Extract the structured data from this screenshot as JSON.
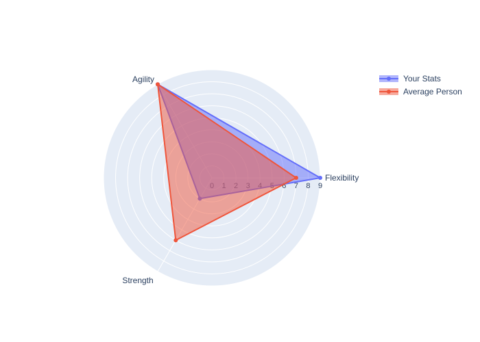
{
  "chart_data": {
    "type": "radar",
    "axes": [
      "Flexibility",
      "Agility",
      "Strength"
    ],
    "radial_range": [
      0,
      9
    ],
    "radial_ticks": [
      "0",
      "1",
      "2",
      "3",
      "4",
      "5",
      "6",
      "7",
      "8",
      "9"
    ],
    "grid": true,
    "legend_position": "top-right",
    "series": [
      {
        "name": "Your Stats",
        "values": [
          9,
          9,
          2
        ],
        "color": "#636efa"
      },
      {
        "name": "Average Person",
        "values": [
          7,
          9,
          6
        ],
        "color": "#ef553b"
      }
    ]
  }
}
